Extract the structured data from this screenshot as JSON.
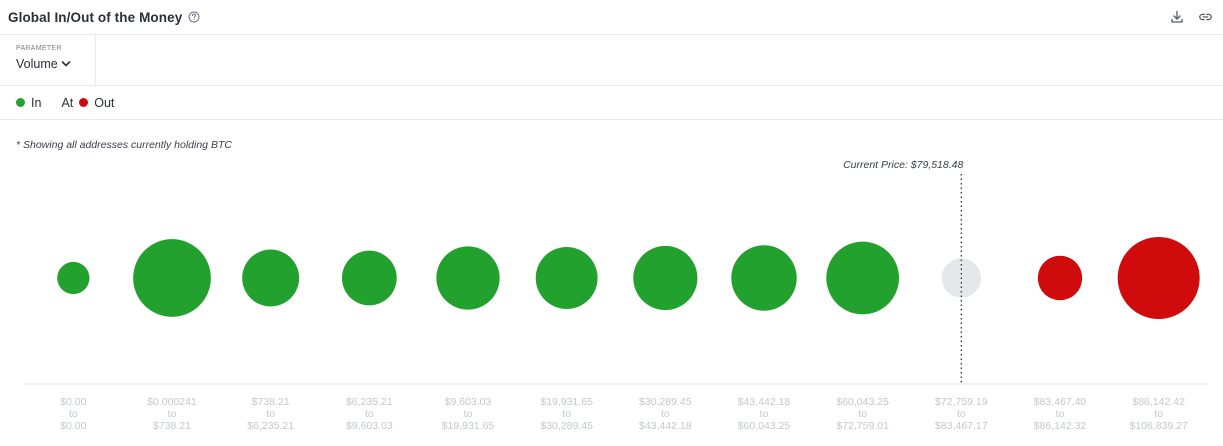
{
  "header": {
    "title": "Global In/Out of the Money",
    "help_icon": "help-circle-icon",
    "download_icon": "download-icon",
    "link_icon": "link-icon"
  },
  "parameter": {
    "label": "PARAMETER",
    "value": "Volume"
  },
  "legend": {
    "in_label": "In",
    "at_label": "At",
    "out_label": "Out"
  },
  "note": "* Showing all addresses currently holding BTC",
  "colors": {
    "in": "#22a12e",
    "at": "#e5e7eb",
    "out": "#cf0b0b",
    "tick_text": "#c3c7cc"
  },
  "chart_data": {
    "type": "bubble",
    "title": "",
    "current_price_label": "Current Price: $79,518.48",
    "current_price_after_index": 9,
    "categories": [
      {
        "from": "$0.00",
        "to": "$0.00",
        "status": "in",
        "relative_size": 0.05
      },
      {
        "from": "$0.000241",
        "to": "$738.21",
        "status": "in",
        "relative_size": 0.87
      },
      {
        "from": "$738.21",
        "to": "$6,235.21",
        "status": "in",
        "relative_size": 0.37
      },
      {
        "from": "$6,235.21",
        "to": "$9,603.03",
        "status": "in",
        "relative_size": 0.33
      },
      {
        "from": "$9,603.03",
        "to": "$19,931.65",
        "status": "in",
        "relative_size": 0.5
      },
      {
        "from": "$19,931.65",
        "to": "$30,289.45",
        "status": "in",
        "relative_size": 0.47
      },
      {
        "from": "$30,289.45",
        "to": "$43,442.18",
        "status": "in",
        "relative_size": 0.52
      },
      {
        "from": "$43,442.18",
        "to": "$60,043.25",
        "status": "in",
        "relative_size": 0.55
      },
      {
        "from": "$60,043.25",
        "to": "$72,759.01",
        "status": "in",
        "relative_size": 0.73
      },
      {
        "from": "$72,759.19",
        "to": "$83,467.17",
        "status": "at",
        "relative_size": 0.11
      },
      {
        "from": "$83,467.40",
        "to": "$86,142.32",
        "status": "out",
        "relative_size": 0.17
      },
      {
        "from": "$86,142.42",
        "to": "$106,839.27",
        "status": "out",
        "relative_size": 1.0
      }
    ],
    "tick_connector": "to"
  }
}
